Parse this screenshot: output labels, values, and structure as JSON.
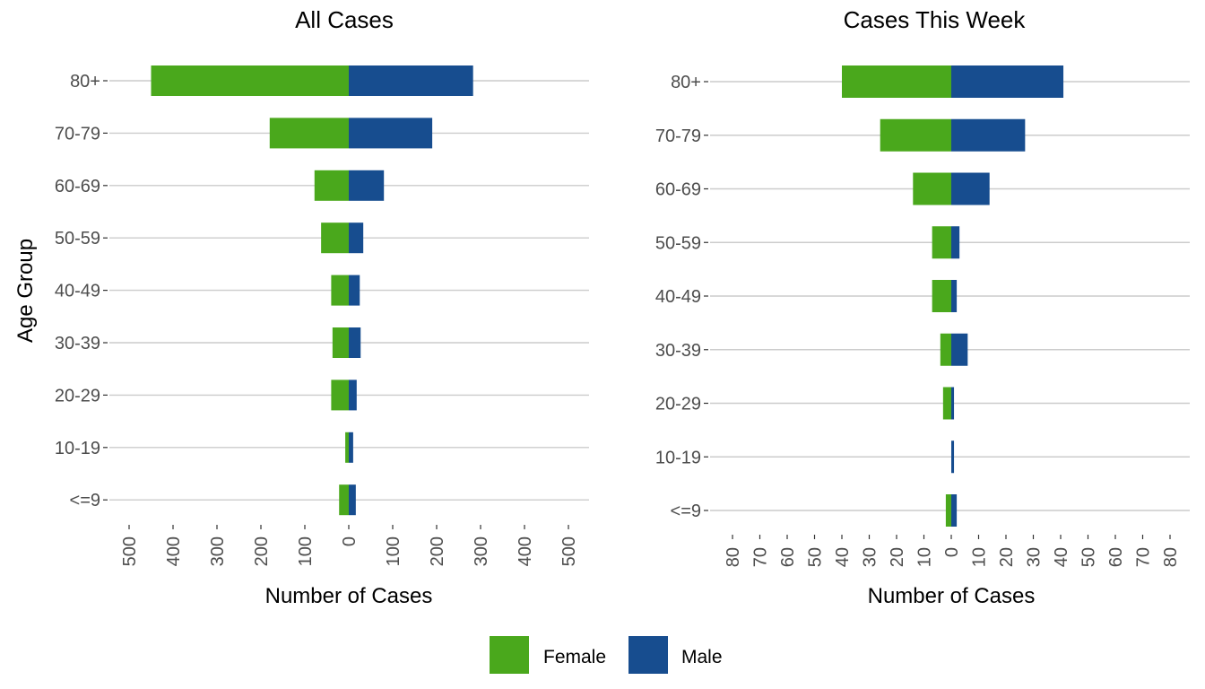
{
  "chart_data": [
    {
      "type": "bar",
      "orientation": "horizontal",
      "title": "All Cases",
      "xlabel": "Number of Cases",
      "ylabel": "Age Group",
      "xlim": [
        -500,
        500
      ],
      "x_ticks": [
        -500,
        -400,
        -300,
        -200,
        -100,
        0,
        100,
        200,
        300,
        400,
        500
      ],
      "x_tick_labels": [
        "500",
        "400",
        "300",
        "200",
        "100",
        "0",
        "100",
        "200",
        "300",
        "400",
        "500"
      ],
      "categories": [
        "<=9",
        "10-19",
        "20-29",
        "30-39",
        "40-49",
        "50-59",
        "60-69",
        "70-79",
        "80+"
      ],
      "series": [
        {
          "name": "Female",
          "values": [
            22,
            8,
            40,
            37,
            40,
            63,
            78,
            180,
            450
          ]
        },
        {
          "name": "Male",
          "values": [
            16,
            10,
            18,
            27,
            25,
            33,
            80,
            190,
            283
          ]
        }
      ],
      "grid": true
    },
    {
      "type": "bar",
      "orientation": "horizontal",
      "title": "Cases This Week",
      "xlabel": "Number of Cases",
      "ylabel": "",
      "xlim": [
        -80,
        80
      ],
      "x_ticks": [
        -80,
        -70,
        -60,
        -50,
        -40,
        -30,
        -20,
        -10,
        0,
        10,
        20,
        30,
        40,
        50,
        60,
        70,
        80
      ],
      "x_tick_labels": [
        "80",
        "70",
        "60",
        "50",
        "40",
        "30",
        "20",
        "10",
        "0",
        "10",
        "20",
        "30",
        "40",
        "50",
        "60",
        "70",
        "80"
      ],
      "categories": [
        "<=9",
        "10-19",
        "20-29",
        "30-39",
        "40-49",
        "50-59",
        "60-69",
        "70-79",
        "80+"
      ],
      "series": [
        {
          "name": "Female",
          "values": [
            2,
            0,
            3,
            4,
            7,
            7,
            14,
            26,
            40
          ]
        },
        {
          "name": "Male",
          "values": [
            2,
            1,
            1,
            6,
            2,
            3,
            14,
            27,
            41
          ]
        }
      ],
      "grid": true
    }
  ],
  "legend": {
    "placement": "bottom",
    "items": [
      {
        "label": "Female",
        "color": "#4aa81c"
      },
      {
        "label": "Male",
        "color": "#174d8f"
      }
    ]
  },
  "colors": {
    "female": "#4aa81c",
    "male": "#174d8f"
  }
}
